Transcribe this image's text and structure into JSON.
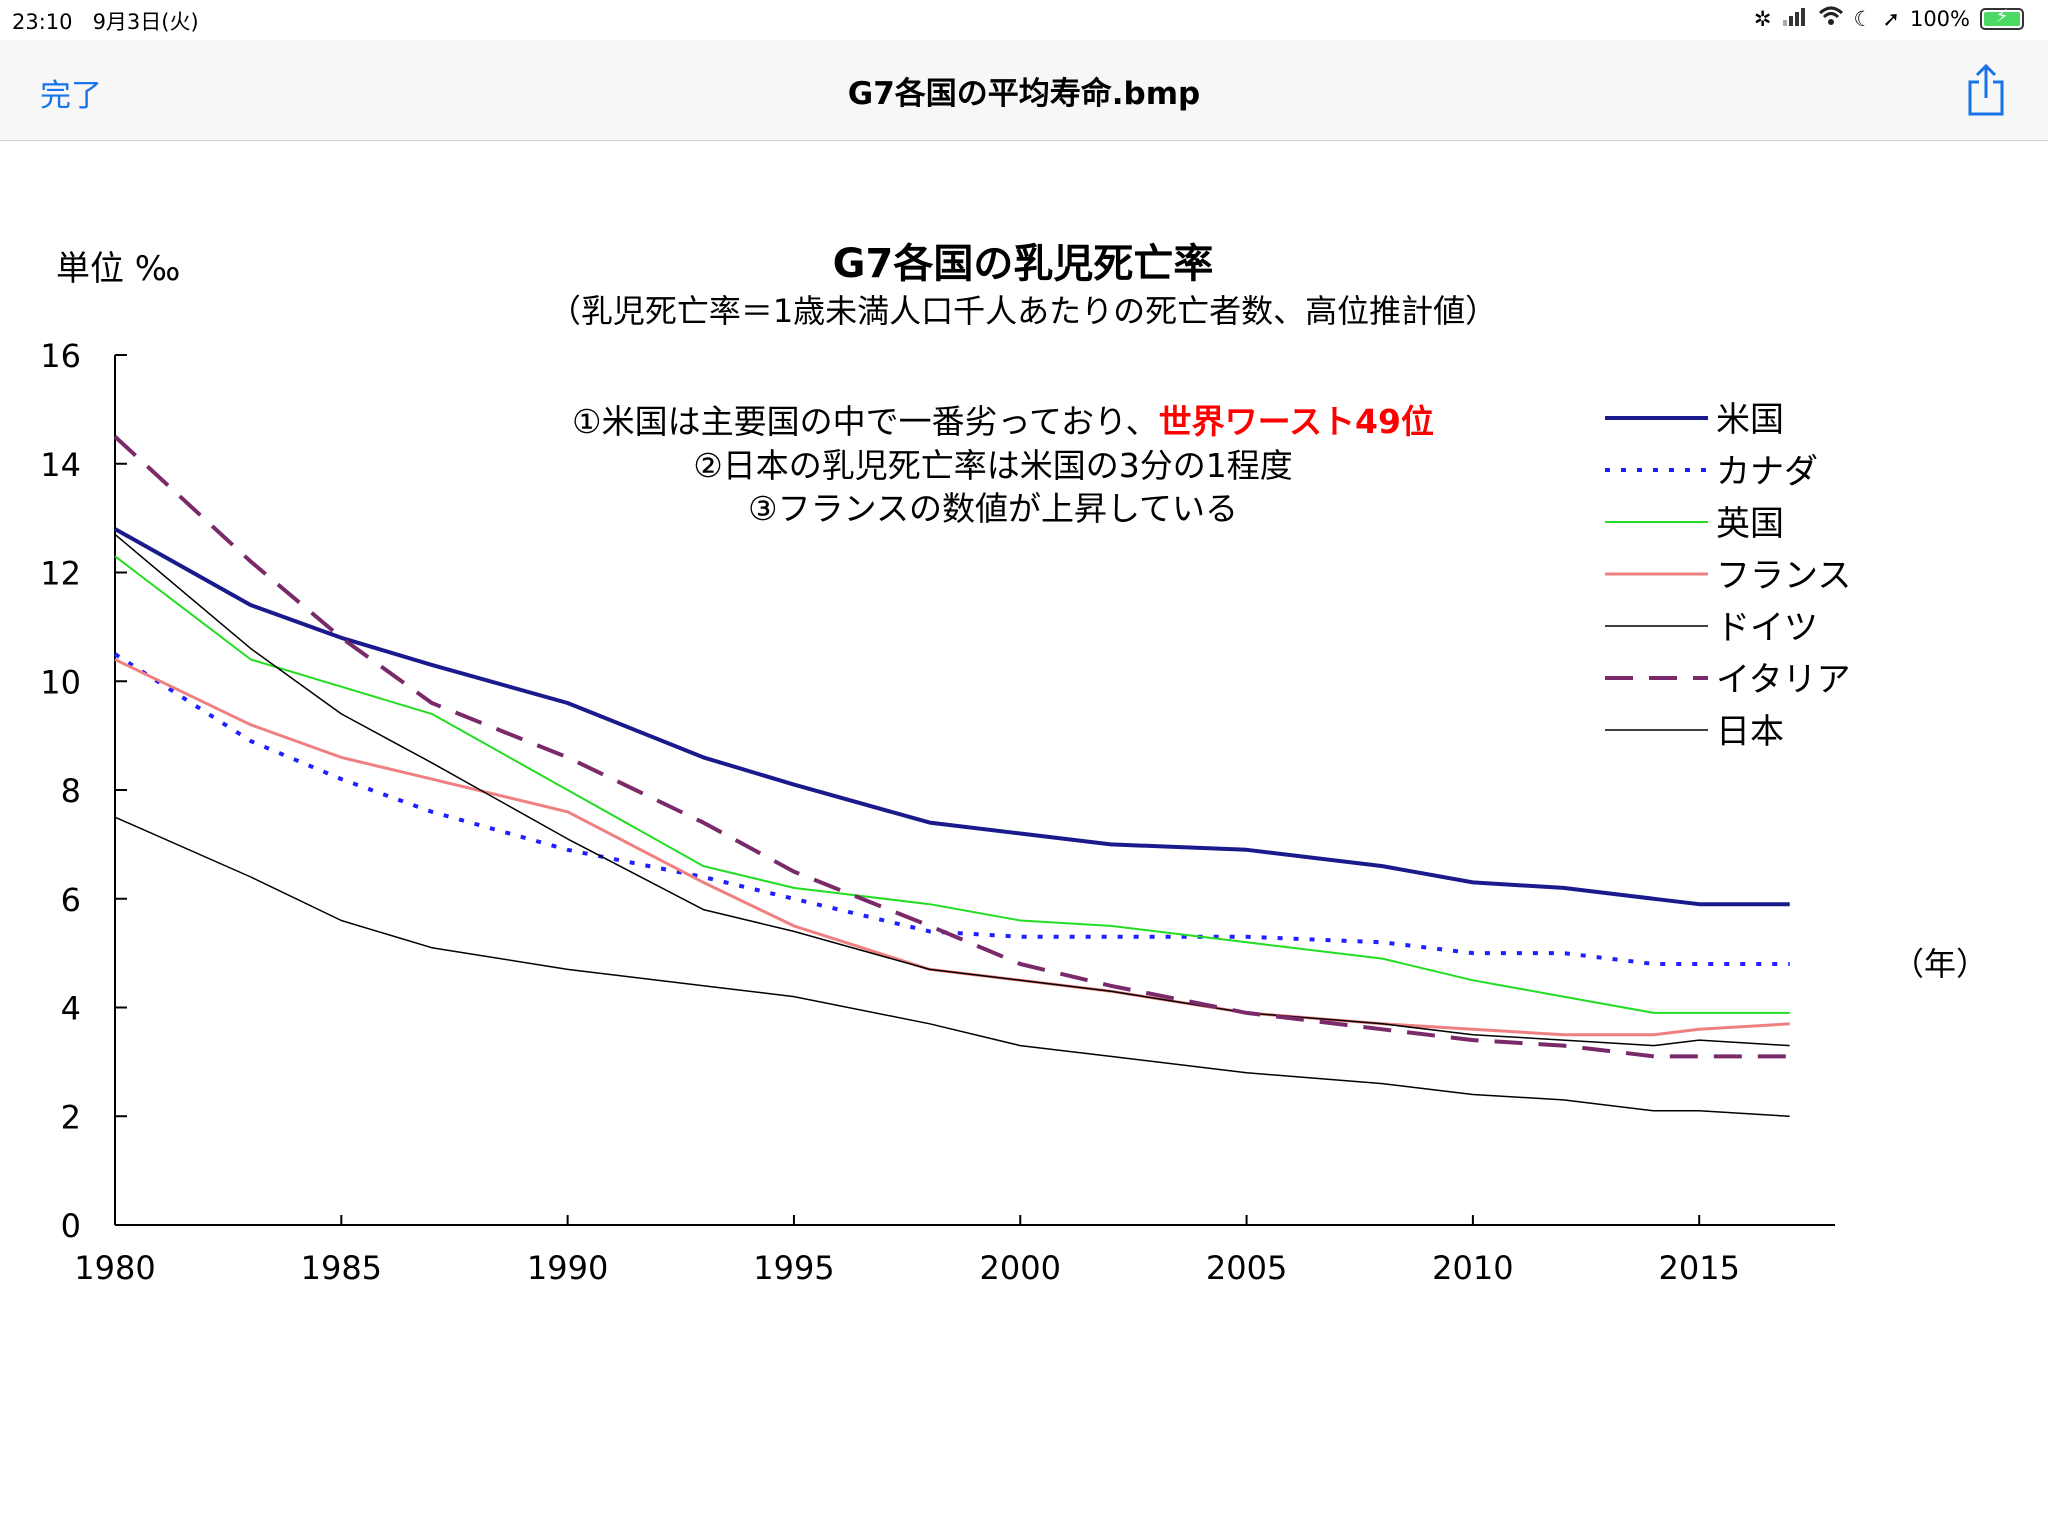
{
  "status_bar": {
    "time": "23:10",
    "date": "9月3日(火)",
    "battery": "100%",
    "icons": [
      "loading-icon",
      "signal-icon",
      "wifi-icon",
      "moon-icon",
      "location-icon",
      "battery-icon"
    ]
  },
  "nav": {
    "done_label": "完了",
    "title": "G7各国の平均寿命.bmp",
    "share_icon": "share-icon",
    "accent_color": "#1a73e8"
  },
  "chart_data": {
    "type": "line",
    "title": "G7各国の乳児死亡率",
    "subtitle": "（乳児死亡率＝1歳未満人口千人あたりの死亡者数、高位推計値）",
    "ylabel": "単位 ‰",
    "xlabel": "（年）",
    "xlim": [
      1980,
      2018
    ],
    "ylim": [
      0,
      16
    ],
    "y_ticks": [
      "0",
      "2",
      "4",
      "6",
      "8",
      "10",
      "12",
      "14",
      "16"
    ],
    "x_ticks": [
      "1980",
      "1985",
      "1990",
      "1995",
      "2000",
      "2005",
      "2010",
      "2015"
    ],
    "annotations": [
      {
        "text": "①米国は主要国の中で一番劣っており、",
        "highlight": "世界ワースト49位"
      },
      {
        "text": "②日本の乳児死亡率は米国の3分の1程度",
        "highlight": ""
      },
      {
        "text": "③フランスの数値が上昇している",
        "highlight": ""
      }
    ],
    "highlight_color": "#ff0000",
    "legend_position": "right",
    "x": [
      1980,
      1983,
      1985,
      1987,
      1990,
      1993,
      1995,
      1998,
      2000,
      2002,
      2005,
      2008,
      2010,
      2012,
      2014,
      2015,
      2017
    ],
    "series": [
      {
        "name": "米国",
        "color": "#1a1a8c",
        "style": "solid",
        "width": 4,
        "values": [
          12.8,
          11.4,
          10.8,
          10.3,
          9.6,
          8.6,
          8.1,
          7.4,
          7.2,
          7.0,
          6.9,
          6.6,
          6.3,
          6.2,
          6.0,
          5.9,
          5.9
        ]
      },
      {
        "name": "カナダ",
        "color": "#1f1fff",
        "style": "dotted",
        "width": 4,
        "values": [
          10.5,
          8.9,
          8.2,
          7.6,
          6.9,
          6.4,
          6.0,
          5.4,
          5.3,
          5.3,
          5.3,
          5.2,
          5.0,
          5.0,
          4.8,
          4.8,
          4.8
        ]
      },
      {
        "name": "英国",
        "color": "#22dd22",
        "style": "solid",
        "width": 2,
        "values": [
          12.3,
          10.4,
          9.9,
          9.4,
          8.0,
          6.6,
          6.2,
          5.9,
          5.6,
          5.5,
          5.2,
          4.9,
          4.5,
          4.2,
          3.9,
          3.9,
          3.9
        ]
      },
      {
        "name": "フランス",
        "color": "#f08080",
        "style": "solid",
        "width": 3,
        "values": [
          10.4,
          9.2,
          8.6,
          8.2,
          7.6,
          6.3,
          5.5,
          4.7,
          4.5,
          4.3,
          3.9,
          3.7,
          3.6,
          3.5,
          3.5,
          3.6,
          3.7
        ]
      },
      {
        "name": "ドイツ",
        "color": "#000000",
        "style": "solid",
        "width": 1.5,
        "values": [
          12.7,
          10.6,
          9.4,
          8.5,
          7.1,
          5.8,
          5.4,
          4.7,
          4.5,
          4.3,
          3.9,
          3.7,
          3.5,
          3.4,
          3.3,
          3.4,
          3.3
        ]
      },
      {
        "name": "イタリア",
        "color": "#7a2a6a",
        "style": "dashed",
        "width": 4,
        "values": [
          14.5,
          12.2,
          10.8,
          9.6,
          8.6,
          7.4,
          6.5,
          5.5,
          4.8,
          4.4,
          3.9,
          3.6,
          3.4,
          3.3,
          3.1,
          3.1,
          3.1
        ]
      },
      {
        "name": "日本",
        "color": "#000000",
        "style": "solid",
        "width": 1.5,
        "values": [
          7.5,
          6.4,
          5.6,
          5.1,
          4.7,
          4.4,
          4.2,
          3.7,
          3.3,
          3.1,
          2.8,
          2.6,
          2.4,
          2.3,
          2.1,
          2.1,
          2.0
        ]
      }
    ]
  }
}
